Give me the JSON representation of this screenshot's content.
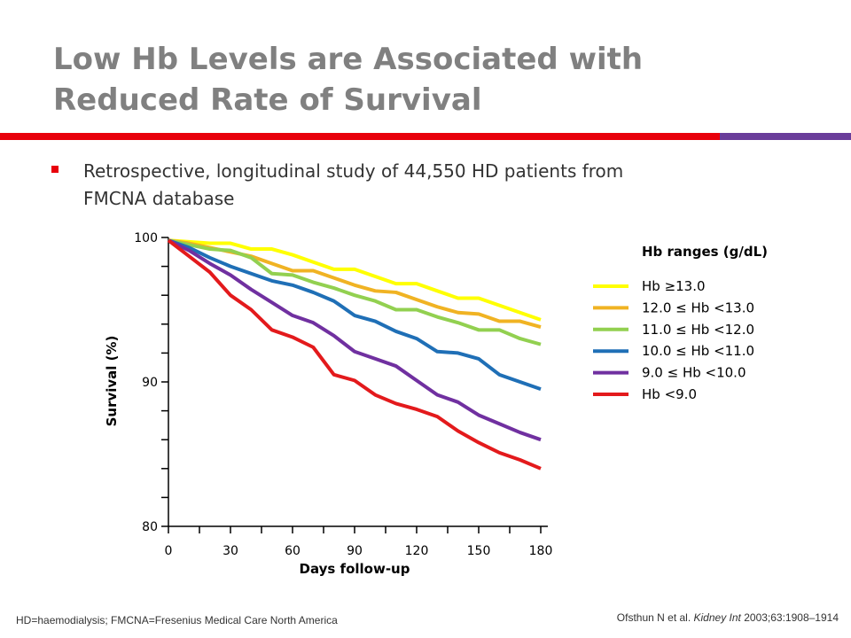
{
  "slide": {
    "title_line1": "Low Hb Levels are Associated with",
    "title_line2": "Reduced Rate of Survival",
    "bullet_line1": "Retrospective, longitudinal study of 44,550 HD patients from",
    "bullet_line2": "FMCNA database",
    "footnote": "HD=haemodialysis; FMCNA=Fresenius Medical Care North America",
    "citation_authors": "Ofsthun N et al. ",
    "citation_journal": "Kidney Int",
    "citation_rest": " 2003;63:1908–1914",
    "accent_red": "#e8000b",
    "accent_purple": "#6a3d9a",
    "title_color": "#808080"
  },
  "chart_data": {
    "type": "line",
    "title": "",
    "xlabel": "Days follow-up",
    "ylabel": "Survival (%)",
    "xlim": [
      0,
      180
    ],
    "ylim": [
      80,
      100
    ],
    "xticks": [
      0,
      30,
      60,
      90,
      120,
      150,
      180
    ],
    "yticks": [
      80,
      90,
      100
    ],
    "legend_title": "Hb ranges (g/dL)",
    "legend_position": "right",
    "x": [
      0,
      10,
      20,
      30,
      40,
      50,
      60,
      70,
      80,
      90,
      100,
      110,
      120,
      130,
      140,
      150,
      160,
      170,
      180
    ],
    "series": [
      {
        "name": "Hb ≥13.0",
        "color": "#ffff00",
        "values": [
          99.8,
          99.7,
          99.6,
          99.6,
          99.2,
          99.2,
          98.8,
          98.3,
          97.8,
          97.8,
          97.3,
          96.8,
          96.8,
          96.3,
          95.8,
          95.8,
          95.3,
          94.8,
          94.3
        ]
      },
      {
        "name": "12.0 ≤ Hb <13.0",
        "color": "#f0b323",
        "values": [
          99.8,
          99.6,
          99.3,
          99.0,
          98.7,
          98.2,
          97.7,
          97.7,
          97.2,
          96.7,
          96.3,
          96.2,
          95.7,
          95.2,
          94.8,
          94.7,
          94.2,
          94.2,
          93.8
        ]
      },
      {
        "name": "11.0 ≤ Hb <12.0",
        "color": "#92d050",
        "values": [
          99.8,
          99.5,
          99.2,
          99.1,
          98.6,
          97.5,
          97.4,
          96.9,
          96.5,
          96.0,
          95.6,
          95.0,
          95.0,
          94.5,
          94.1,
          93.6,
          93.6,
          93.0,
          92.6
        ]
      },
      {
        "name": "10.0 ≤ Hb <11.0",
        "color": "#1f6fb6",
        "values": [
          99.8,
          99.3,
          98.6,
          98.0,
          97.5,
          97.0,
          96.7,
          96.2,
          95.6,
          94.6,
          94.2,
          93.5,
          93.0,
          92.1,
          92.0,
          91.6,
          90.5,
          90.0,
          89.5
        ]
      },
      {
        "name": "9.0 ≤ Hb <10.0",
        "color": "#7030a0",
        "values": [
          99.8,
          99.1,
          98.2,
          97.4,
          96.4,
          95.5,
          94.6,
          94.1,
          93.2,
          92.1,
          91.6,
          91.1,
          90.1,
          89.1,
          88.6,
          87.7,
          87.1,
          86.5,
          86.0
        ]
      },
      {
        "name": "Hb <9.0",
        "color": "#e31a1c",
        "values": [
          99.8,
          98.7,
          97.6,
          96.0,
          95.0,
          93.6,
          93.1,
          92.4,
          90.5,
          90.1,
          89.1,
          88.5,
          88.1,
          87.6,
          86.6,
          85.8,
          85.1,
          84.6,
          84.0
        ]
      }
    ]
  }
}
